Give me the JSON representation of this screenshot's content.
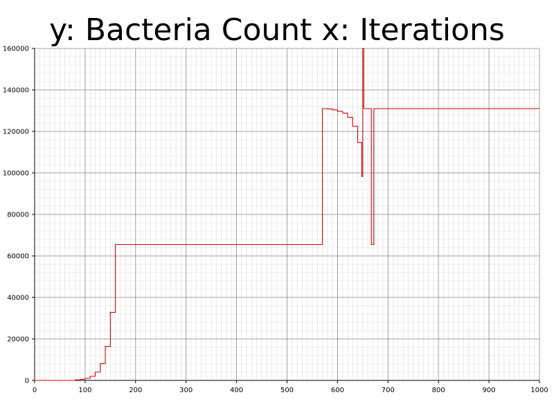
{
  "chart_data": {
    "type": "line",
    "title": "y: Bacteria Count x: Iterations",
    "xlabel": "",
    "ylabel": "",
    "xlim": [
      0,
      1000
    ],
    "ylim": [
      0,
      160000
    ],
    "x_ticks": [
      0,
      100,
      200,
      300,
      400,
      500,
      600,
      700,
      800,
      900,
      1000
    ],
    "y_ticks": [
      0,
      20000,
      40000,
      60000,
      80000,
      100000,
      120000,
      140000,
      160000
    ],
    "x_minor_step": 10,
    "y_minor_step": 4000,
    "grid": true,
    "legend": "none",
    "line_color": "#cc0000",
    "series": [
      {
        "step": "post",
        "x": [
          0,
          80,
          90,
          100,
          110,
          120,
          130,
          140,
          150,
          160,
          570,
          580,
          590,
          600,
          610,
          620,
          630,
          640,
          648,
          650,
          652,
          660,
          667,
          672,
          1000
        ],
        "y": [
          0,
          250,
          500,
          1000,
          2000,
          4000,
          8100,
          16400,
          32800,
          65500,
          131000,
          130800,
          130400,
          129700,
          128800,
          126800,
          122500,
          114700,
          98300,
          160000,
          131000,
          131000,
          65500,
          131000,
          131000
        ]
      }
    ]
  }
}
